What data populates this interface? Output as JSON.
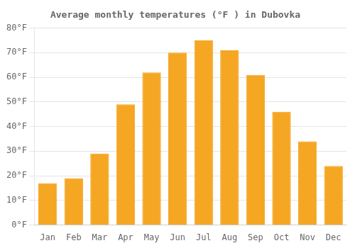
{
  "chart_data": {
    "type": "bar",
    "title": "Average monthly temperatures (°F ) in Dubovka",
    "categories": [
      "Jan",
      "Feb",
      "Mar",
      "Apr",
      "May",
      "Jun",
      "Jul",
      "Aug",
      "Sep",
      "Oct",
      "Nov",
      "Dec"
    ],
    "values": [
      17,
      19,
      29,
      49,
      62,
      70,
      75,
      71,
      61,
      46,
      34,
      24
    ],
    "color": "#F5A623",
    "ylim": [
      0,
      80
    ],
    "yticks": [
      {
        "value": 0,
        "label": "0°F"
      },
      {
        "value": 10,
        "label": "10°F"
      },
      {
        "value": 20,
        "label": "20°F"
      },
      {
        "value": 30,
        "label": "30°F"
      },
      {
        "value": 40,
        "label": "40°F"
      },
      {
        "value": 50,
        "label": "50°F"
      },
      {
        "value": 60,
        "label": "60°F"
      },
      {
        "value": 70,
        "label": "70°F"
      },
      {
        "value": 80,
        "label": "80°F"
      }
    ],
    "grid": true
  }
}
